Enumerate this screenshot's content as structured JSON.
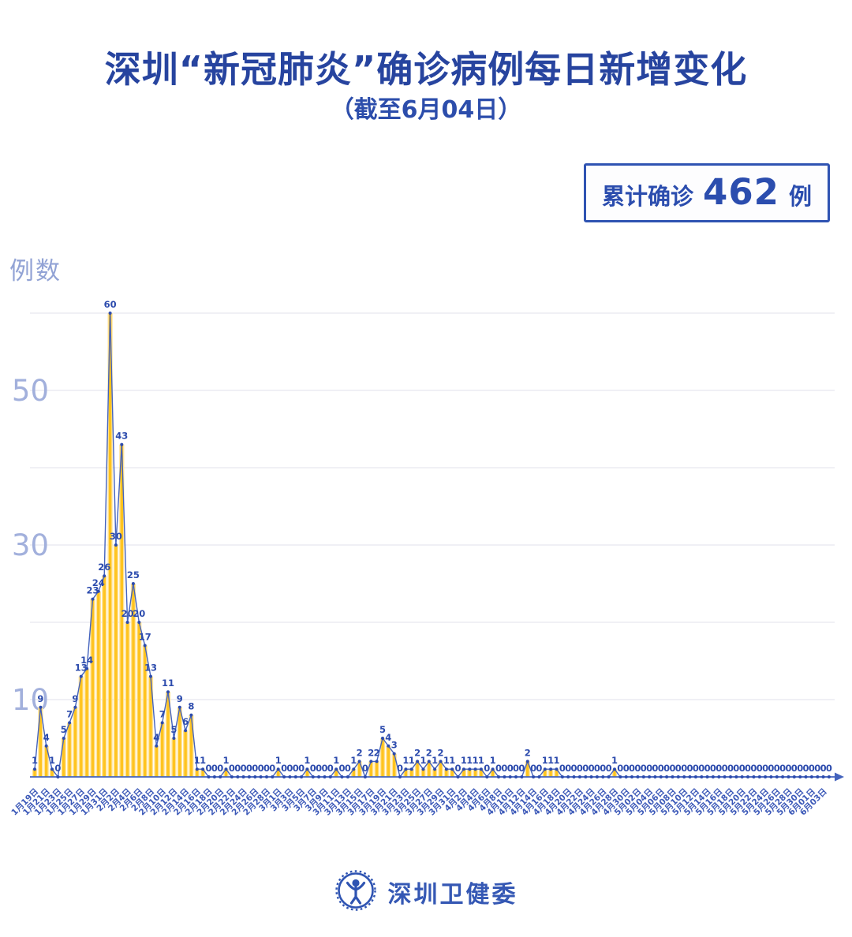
{
  "header": {
    "title": "深圳“新冠肺炎”确诊病例每日新增变化",
    "subtitle": "（截至6月04日）"
  },
  "summary_badge": {
    "prefix": "累计确诊",
    "value": "462",
    "unit": "例"
  },
  "footer": {
    "org_name": "深圳卫健委",
    "logo_icon": "shenzhen-health-commission-logo"
  },
  "chart_data": {
    "type": "line",
    "subtype": "daily line with point markers, value labels and thin yellow column fill",
    "title": "深圳“新冠肺炎”确诊病例每日新增变化",
    "xlabel": "",
    "ylabel": "例数",
    "ylim": [
      0,
      62
    ],
    "grid": true,
    "date_range": "1月19日 — 6月04日 (one point per day, 138 points)",
    "values": [
      1,
      9,
      4,
      1,
      0,
      5,
      7,
      9,
      13,
      14,
      23,
      24,
      26,
      60,
      30,
      43,
      20,
      25,
      20,
      17,
      13,
      4,
      7,
      11,
      5,
      9,
      6,
      8,
      1,
      1,
      0,
      0,
      0,
      1,
      0,
      0,
      0,
      0,
      0,
      0,
      0,
      0,
      1,
      0,
      0,
      0,
      0,
      1,
      0,
      0,
      0,
      0,
      1,
      0,
      0,
      1,
      2,
      0,
      2,
      2,
      5,
      4,
      3,
      0,
      1,
      1,
      2,
      1,
      2,
      1,
      2,
      1,
      1,
      0,
      1,
      1,
      1,
      1,
      0,
      1,
      0,
      0,
      0,
      0,
      0,
      2,
      0,
      0,
      1,
      1,
      1,
      0,
      0,
      0,
      0,
      0,
      0,
      0,
      0,
      0,
      1,
      0,
      0,
      0,
      0,
      0,
      0,
      0,
      0,
      0,
      0,
      0,
      0,
      0,
      0,
      0,
      0,
      0,
      0,
      0,
      0,
      0,
      0,
      0,
      0,
      0,
      0,
      0,
      0,
      0,
      0,
      0,
      0,
      0,
      0,
      0,
      0,
      0
    ],
    "values_sum": 462,
    "y_axis": {
      "title": "例数",
      "ticks": [
        10,
        30,
        50
      ],
      "gridlines": [
        10,
        20,
        30,
        40,
        50,
        60
      ]
    },
    "x_axis": {
      "tick_every_n_points": 2,
      "tick_labels": [
        "1月19日",
        "1月21日",
        "1月23日",
        "1月25日",
        "1月27日",
        "1月29日",
        "1月31日",
        "2月2日",
        "2月4日",
        "2月6日",
        "2月8日",
        "2月10日",
        "2月12日",
        "2月14日",
        "2月16日",
        "2月18日",
        "2月20日",
        "2月22日",
        "2月24日",
        "2月26日",
        "2月28日",
        "3月1日",
        "3月3日",
        "3月5日",
        "3月7日",
        "3月9日",
        "3月11日",
        "3月13日",
        "3月15日",
        "3月17日",
        "3月19日",
        "3月21日",
        "3月23日",
        "3月25日",
        "3月27日",
        "3月29日",
        "3月31日",
        "4月2日",
        "4月4日",
        "4月6日",
        "4月8日",
        "4月10日",
        "4月12日",
        "4月14日",
        "4月16日",
        "4月18日",
        "4月20日",
        "4月22日",
        "4月24日",
        "4月26日",
        "4月28日",
        "4月30日",
        "5月02日",
        "5月04日",
        "5月06日",
        "5月08日",
        "5月10日",
        "5月12日",
        "5月14日",
        "5月16日",
        "5月18日",
        "5月20日",
        "5月22日",
        "5月24日",
        "5月26日",
        "5月28日",
        "5月30日",
        "6月01日",
        "6月03日"
      ]
    },
    "colors": {
      "line": "#4463bd",
      "point": "#2c4bad",
      "value_label": "#2c4bad",
      "bar": "#ffc41f",
      "bar_halo": "#ffe399",
      "grid": "#e6e8ef",
      "axis_text": "#a2b0dc",
      "date_label": "#3c59b8"
    }
  }
}
